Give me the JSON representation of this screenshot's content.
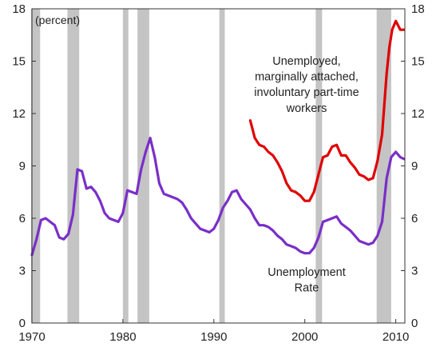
{
  "chart_data": {
    "type": "line",
    "title": "",
    "unit_label": "(percent)",
    "xlabel": "",
    "ylabel": "",
    "xlim": [
      1970,
      2011
    ],
    "ylim": [
      0,
      18
    ],
    "x_ticks": [
      1970,
      1980,
      1990,
      2000,
      2010
    ],
    "x_tick_labels": [
      "1970",
      "1980",
      "1990",
      "2000",
      "2010"
    ],
    "y_ticks": [
      0,
      3,
      6,
      9,
      12,
      15,
      18
    ],
    "y_tick_labels": [
      "0",
      "3",
      "6",
      "9",
      "12",
      "15",
      "18"
    ],
    "grid": false,
    "recessions": [
      [
        1969.9,
        1970.9
      ],
      [
        1973.9,
        1975.2
      ],
      [
        1980.0,
        1980.6
      ],
      [
        1981.6,
        1982.9
      ],
      [
        1990.6,
        1991.2
      ],
      [
        2001.2,
        2001.9
      ],
      [
        2007.9,
        2009.5
      ]
    ],
    "annotations": [
      {
        "text": "Unemployed,",
        "series": "u6",
        "x": 2000.2,
        "y": 14.8
      },
      {
        "text": "marginally attached,",
        "series": "u6",
        "x": 2000.2,
        "y": 13.9
      },
      {
        "text": "involuntary part-time",
        "series": "u6",
        "x": 2000.2,
        "y": 13.0
      },
      {
        "text": "workers",
        "series": "u6",
        "x": 2000.2,
        "y": 12.1
      },
      {
        "text": "Unemployment",
        "series": "u3",
        "x": 2000.2,
        "y": 2.7
      },
      {
        "text": "Rate",
        "series": "u3",
        "x": 2000.2,
        "y": 1.8
      }
    ],
    "series": [
      {
        "id": "u3",
        "color": "#7a2ec9",
        "x": [
          1970.0,
          1970.5,
          1971.0,
          1971.5,
          1972.0,
          1972.5,
          1973.0,
          1973.5,
          1974.0,
          1974.5,
          1975.0,
          1975.5,
          1976.0,
          1976.5,
          1977.0,
          1977.5,
          1978.0,
          1978.5,
          1979.0,
          1979.5,
          1980.0,
          1980.5,
          1981.0,
          1981.5,
          1982.0,
          1982.5,
          1983.0,
          1983.5,
          1984.0,
          1984.5,
          1985.0,
          1985.5,
          1986.0,
          1986.5,
          1987.0,
          1987.5,
          1988.0,
          1988.5,
          1989.0,
          1989.5,
          1990.0,
          1990.5,
          1991.0,
          1991.5,
          1992.0,
          1992.5,
          1993.0,
          1993.5,
          1994.0,
          1994.5,
          1995.0,
          1995.5,
          1996.0,
          1996.5,
          1997.0,
          1997.5,
          1998.0,
          1998.5,
          1999.0,
          1999.5,
          2000.0,
          2000.5,
          2001.0,
          2001.5,
          2002.0,
          2002.5,
          2003.0,
          2003.5,
          2004.0,
          2004.5,
          2005.0,
          2005.5,
          2006.0,
          2006.5,
          2007.0,
          2007.5,
          2008.0,
          2008.5,
          2009.0,
          2009.5,
          2010.0,
          2010.5,
          2010.9
        ],
        "values": [
          3.9,
          4.8,
          5.9,
          6.0,
          5.8,
          5.6,
          4.9,
          4.8,
          5.1,
          6.2,
          8.8,
          8.7,
          7.7,
          7.8,
          7.5,
          7.0,
          6.3,
          6.0,
          5.9,
          5.8,
          6.3,
          7.6,
          7.5,
          7.4,
          8.8,
          9.8,
          10.6,
          9.5,
          8.0,
          7.4,
          7.3,
          7.2,
          7.1,
          6.9,
          6.5,
          6.0,
          5.7,
          5.4,
          5.3,
          5.2,
          5.4,
          5.9,
          6.6,
          7.0,
          7.5,
          7.6,
          7.1,
          6.8,
          6.5,
          6.0,
          5.6,
          5.6,
          5.5,
          5.3,
          5.0,
          4.8,
          4.5,
          4.4,
          4.3,
          4.1,
          4.0,
          4.0,
          4.3,
          4.9,
          5.8,
          5.9,
          6.0,
          6.1,
          5.7,
          5.5,
          5.3,
          5.0,
          4.7,
          4.6,
          4.5,
          4.6,
          5.0,
          5.8,
          8.3,
          9.5,
          9.8,
          9.5,
          9.4
        ]
      },
      {
        "id": "u6",
        "color": "#e00000",
        "x": [
          1994.0,
          1994.5,
          1995.0,
          1995.5,
          1996.0,
          1996.5,
          1997.0,
          1997.5,
          1998.0,
          1998.5,
          1999.0,
          1999.5,
          2000.0,
          2000.5,
          2001.0,
          2001.5,
          2002.0,
          2002.5,
          2003.0,
          2003.5,
          2004.0,
          2004.5,
          2005.0,
          2005.5,
          2006.0,
          2006.5,
          2007.0,
          2007.5,
          2008.0,
          2008.5,
          2009.0,
          2009.3,
          2009.6,
          2010.0,
          2010.5,
          2010.9
        ],
        "values": [
          11.6,
          10.6,
          10.2,
          10.1,
          9.8,
          9.6,
          9.2,
          8.7,
          8.0,
          7.6,
          7.5,
          7.3,
          7.0,
          7.0,
          7.5,
          8.5,
          9.5,
          9.6,
          10.1,
          10.2,
          9.6,
          9.6,
          9.2,
          8.9,
          8.5,
          8.4,
          8.2,
          8.3,
          9.3,
          10.8,
          14.3,
          15.8,
          16.8,
          17.3,
          16.8,
          16.8
        ]
      }
    ]
  }
}
